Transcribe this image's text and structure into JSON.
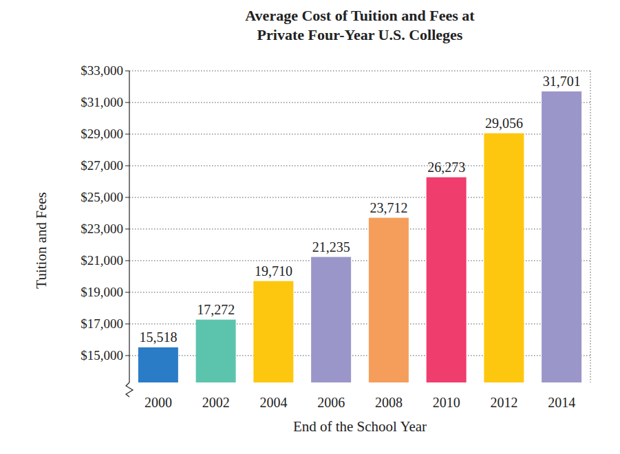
{
  "chart_data": {
    "type": "bar",
    "title": "Average Cost of Tuition and Fees at Private Four-Year U.S. Colleges",
    "x_label": "End of the School Year",
    "y_label": "Tuition and Fees",
    "categories": [
      "2000",
      "2002",
      "2004",
      "2006",
      "2008",
      "2010",
      "2012",
      "2014"
    ],
    "values": [
      15518,
      17272,
      19710,
      21235,
      23712,
      26273,
      29056,
      31701
    ],
    "value_labels": [
      "15,518",
      "17,272",
      "19,710",
      "21,235",
      "23,712",
      "26,273",
      "29,056",
      "31,701"
    ],
    "colors": [
      "#2b7cc7",
      "#5cc4ad",
      "#fdc70f",
      "#9b96c9",
      "#f59e5b",
      "#ef3d6d",
      "#fdc70f",
      "#9b96c9"
    ],
    "data_labels": true,
    "grid": true,
    "ylim": [
      13300,
      33000
    ],
    "yticks": [
      {
        "value": 15000,
        "label": "$15,000"
      },
      {
        "value": 17000,
        "label": "$17,000"
      },
      {
        "value": 19000,
        "label": "$19,000"
      },
      {
        "value": 21000,
        "label": "$21,000"
      },
      {
        "value": 23000,
        "label": "$23,000"
      },
      {
        "value": 25000,
        "label": "$25,000"
      },
      {
        "value": 27000,
        "label": "$27,000"
      },
      {
        "value": 29000,
        "label": "$29,000"
      },
      {
        "value": 31000,
        "label": "$31,000"
      },
      {
        "value": 33000,
        "label": "$33,000"
      }
    ]
  }
}
